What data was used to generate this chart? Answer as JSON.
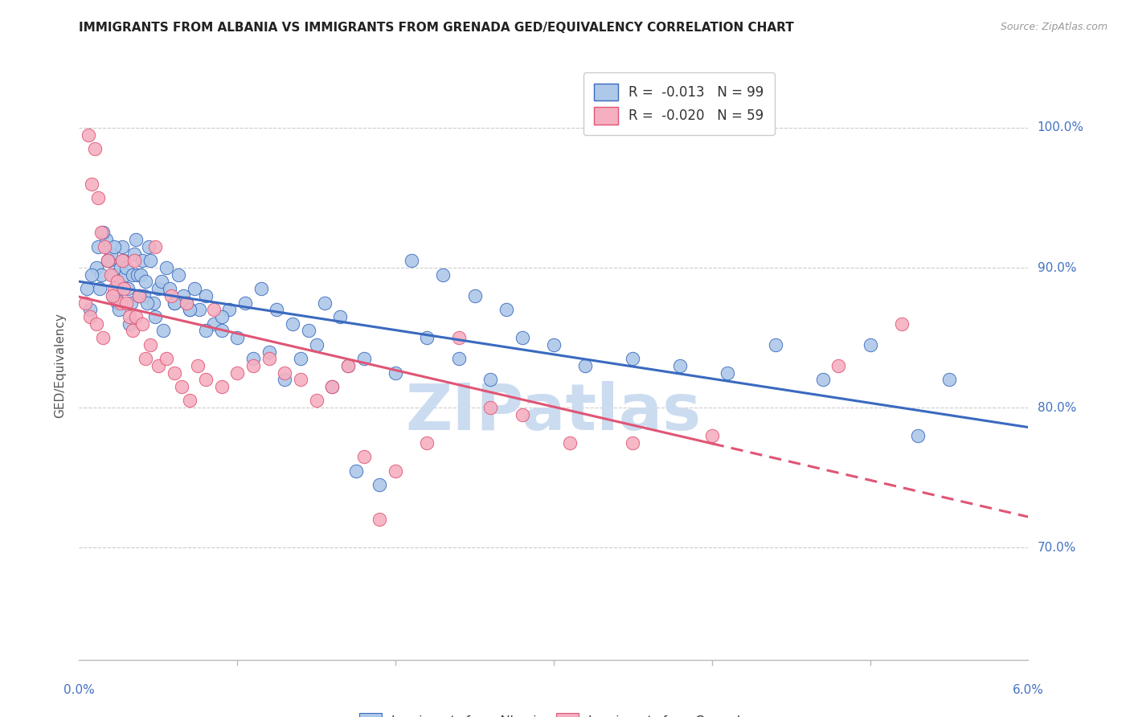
{
  "title": "IMMIGRANTS FROM ALBANIA VS IMMIGRANTS FROM GRENADA GED/EQUIVALENCY CORRELATION CHART",
  "source": "Source: ZipAtlas.com",
  "ylabel": "GED/Equivalency",
  "xmin": 0.0,
  "xmax": 6.0,
  "ymin": 62.0,
  "ymax": 104.0,
  "yticks": [
    70.0,
    80.0,
    90.0,
    100.0
  ],
  "ytick_labels": [
    "70.0%",
    "80.0%",
    "90.0%",
    "100.0%"
  ],
  "legend_albania_r": "-0.013",
  "legend_albania_n": "99",
  "legend_grenada_r": "-0.020",
  "legend_grenada_n": "59",
  "albania_color": "#adc8e8",
  "grenada_color": "#f5afc0",
  "albania_line_color": "#3a6abf",
  "grenada_line_color": "#e05575",
  "title_color": "#222222",
  "source_color": "#999999",
  "axis_color": "#4472c4",
  "watermark_color": "#ccdcf0",
  "grid_color": "#cccccc",
  "albania_x": [
    0.07,
    0.11,
    0.13,
    0.14,
    0.17,
    0.19,
    0.2,
    0.21,
    0.22,
    0.23,
    0.24,
    0.25,
    0.26,
    0.27,
    0.28,
    0.29,
    0.3,
    0.31,
    0.33,
    0.34,
    0.35,
    0.36,
    0.37,
    0.38,
    0.39,
    0.4,
    0.41,
    0.42,
    0.44,
    0.45,
    0.47,
    0.5,
    0.52,
    0.55,
    0.57,
    0.6,
    0.63,
    0.66,
    0.68,
    0.7,
    0.73,
    0.76,
    0.8,
    0.85,
    0.9,
    0.95,
    1.0,
    1.1,
    1.2,
    1.3,
    1.4,
    1.5,
    1.6,
    1.7,
    1.8,
    2.0,
    2.2,
    2.4,
    2.6,
    2.8,
    3.0,
    3.2,
    3.5,
    3.8,
    4.1,
    4.4,
    4.7,
    5.0,
    5.3,
    5.5,
    0.05,
    0.08,
    0.12,
    0.15,
    0.18,
    0.22,
    0.25,
    0.32,
    0.38,
    0.43,
    0.48,
    0.53,
    0.6,
    0.7,
    0.8,
    0.9,
    1.05,
    1.15,
    1.25,
    1.35,
    1.45,
    1.55,
    1.65,
    1.75,
    1.9,
    2.1,
    2.3,
    2.5,
    2.7
  ],
  "albania_y": [
    87.0,
    90.0,
    88.5,
    89.5,
    92.0,
    90.5,
    91.0,
    88.0,
    89.5,
    88.0,
    87.5,
    88.5,
    90.0,
    91.5,
    90.5,
    89.5,
    90.0,
    88.5,
    87.5,
    89.5,
    91.0,
    92.0,
    89.5,
    88.0,
    89.5,
    90.5,
    88.0,
    89.0,
    91.5,
    90.5,
    87.5,
    88.5,
    89.0,
    90.0,
    88.5,
    87.5,
    89.5,
    88.0,
    87.5,
    87.0,
    88.5,
    87.0,
    88.0,
    86.0,
    85.5,
    87.0,
    85.0,
    83.5,
    84.0,
    82.0,
    83.5,
    84.5,
    81.5,
    83.0,
    83.5,
    82.5,
    85.0,
    83.5,
    82.0,
    85.0,
    84.5,
    83.0,
    83.5,
    83.0,
    82.5,
    84.5,
    82.0,
    84.5,
    78.0,
    82.0,
    88.5,
    89.5,
    91.5,
    92.5,
    90.5,
    91.5,
    87.0,
    86.0,
    88.0,
    87.5,
    86.5,
    85.5,
    87.5,
    87.0,
    85.5,
    86.5,
    87.5,
    88.5,
    87.0,
    86.0,
    85.5,
    87.5,
    86.5,
    75.5,
    74.5,
    90.5,
    89.5,
    88.0,
    87.0
  ],
  "grenada_x": [
    0.04,
    0.06,
    0.08,
    0.1,
    0.12,
    0.14,
    0.16,
    0.18,
    0.2,
    0.22,
    0.24,
    0.26,
    0.28,
    0.3,
    0.32,
    0.34,
    0.36,
    0.38,
    0.4,
    0.42,
    0.45,
    0.5,
    0.55,
    0.6,
    0.65,
    0.7,
    0.75,
    0.8,
    0.9,
    1.0,
    1.1,
    1.2,
    1.3,
    1.4,
    1.5,
    1.6,
    1.7,
    1.8,
    1.9,
    2.0,
    2.2,
    2.4,
    2.6,
    2.8,
    3.1,
    3.5,
    4.0,
    4.8,
    5.2,
    0.07,
    0.11,
    0.15,
    0.21,
    0.27,
    0.35,
    0.48,
    0.58,
    0.68,
    0.85
  ],
  "grenada_y": [
    87.5,
    99.5,
    96.0,
    98.5,
    95.0,
    92.5,
    91.5,
    90.5,
    89.5,
    88.5,
    89.0,
    87.5,
    88.5,
    87.5,
    86.5,
    85.5,
    86.5,
    88.0,
    86.0,
    83.5,
    84.5,
    83.0,
    83.5,
    82.5,
    81.5,
    80.5,
    83.0,
    82.0,
    81.5,
    82.5,
    83.0,
    83.5,
    82.5,
    82.0,
    80.5,
    81.5,
    83.0,
    76.5,
    72.0,
    75.5,
    77.5,
    85.0,
    80.0,
    79.5,
    77.5,
    77.5,
    78.0,
    83.0,
    86.0,
    86.5,
    86.0,
    85.0,
    88.0,
    90.5,
    90.5,
    91.5,
    88.0,
    87.5,
    87.0
  ]
}
